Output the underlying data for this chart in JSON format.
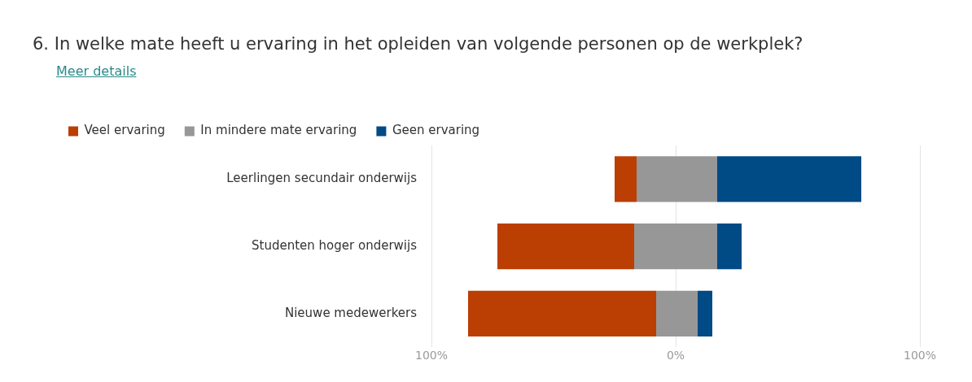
{
  "chart_data": {
    "type": "bar",
    "orientation": "horizontal",
    "title": "6. In welke mate heeft u ervaring in het opleiden van volgende personen op de werkplek?",
    "subtitle": "Meer details",
    "categories": [
      "Leerlingen secundair onderwijs",
      "Studenten hoger onderwijs",
      "Nieuwe medewerkers"
    ],
    "series": [
      {
        "name": "Veel ervaring",
        "color": "#bb3e03",
        "values": [
          9,
          56,
          77
        ],
        "base": [
          -25,
          -73,
          -85
        ]
      },
      {
        "name": "In mindere mate ervaring",
        "color": "#979797",
        "values": [
          33,
          34,
          17
        ],
        "base": [
          -16,
          -17,
          -8
        ]
      },
      {
        "name": "Geen ervaring",
        "color": "#004a85",
        "values": [
          59,
          10,
          6
        ],
        "base": [
          17,
          17,
          9
        ]
      }
    ],
    "xlim": [
      -100,
      100
    ],
    "xticks": [
      {
        "value": -100,
        "label": "100%"
      },
      {
        "value": 0,
        "label": "0%"
      },
      {
        "value": 100,
        "label": "100%"
      }
    ],
    "grid": "x",
    "legend": "top left"
  }
}
